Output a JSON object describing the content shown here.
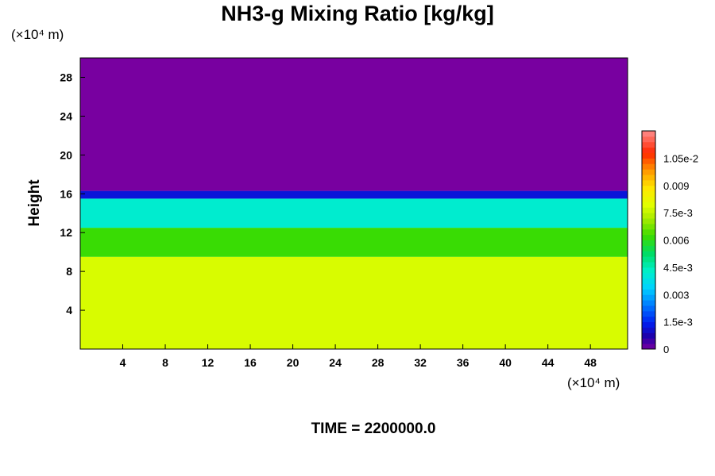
{
  "chart_data": {
    "type": "heatmap",
    "title": "NH3-g Mixing Ratio [kg/kg]",
    "ylabel": "Height",
    "x_unit": "(×10⁴ m)",
    "y_unit": "(×10⁴ m)",
    "xlim": [
      0,
      51.5
    ],
    "ylim": [
      0,
      30
    ],
    "x_ticks": [
      "4",
      "8",
      "12",
      "16",
      "20",
      "24",
      "28",
      "32",
      "36",
      "40",
      "44",
      "48"
    ],
    "y_ticks": [
      "4",
      "8",
      "12",
      "16",
      "20",
      "24",
      "28"
    ],
    "colorbar": {
      "min": 0,
      "max": 0.012,
      "tick_values": [
        0,
        0.0015,
        0.003,
        0.0045,
        0.006,
        0.0075,
        0.009,
        0.0105
      ],
      "tick_labels": [
        "0",
        "1.5e-3",
        "0.003",
        "4.5e-3",
        "0.006",
        "7.5e-3",
        "0.009",
        "1.05e-2"
      ]
    },
    "layers": [
      {
        "y_from": 0,
        "y_to": 9.5,
        "value": 0.0078
      },
      {
        "y_from": 9.5,
        "y_to": 12.5,
        "value": 0.0062
      },
      {
        "y_from": 12.5,
        "y_to": 15.5,
        "value": 0.0042
      },
      {
        "y_from": 15.5,
        "y_to": 16.3,
        "value": 0.0012
      },
      {
        "y_from": 16.3,
        "y_to": 30,
        "value": 0.0
      }
    ],
    "footer": "TIME = 2200000.0"
  }
}
